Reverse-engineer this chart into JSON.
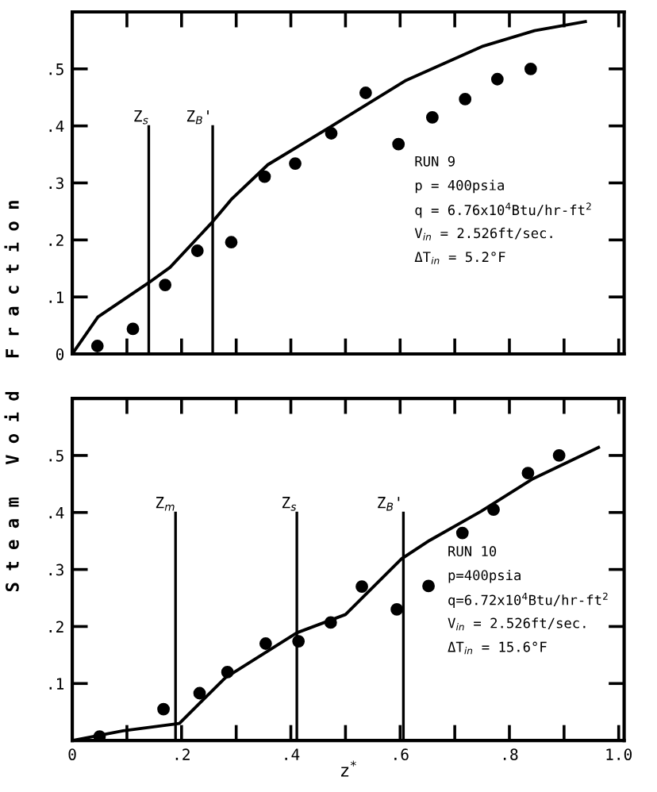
{
  "chart_data": [
    {
      "type": "scatter",
      "ylabel": "S t e a m   V o i d   F r a c t i o n",
      "xlim": [
        0,
        1.01
      ],
      "ylim": [
        0,
        0.6
      ],
      "tick_labels": "y",
      "grid": false,
      "legend": false,
      "xticks": [
        0.1,
        0.2,
        0.3,
        0.4,
        0.5,
        0.6,
        0.7,
        0.8,
        0.9,
        1.0
      ],
      "yticks": [
        {
          "value": 0,
          "label": "0"
        },
        {
          "value": 0.1,
          "label": ".1"
        },
        {
          "value": 0.2,
          "label": ".2"
        },
        {
          "value": 0.3,
          "label": ".3"
        },
        {
          "value": 0.4,
          "label": ".4"
        },
        {
          "value": 0.5,
          "label": ".5"
        }
      ],
      "series": [
        {
          "type": "line",
          "color": "#000000",
          "marker": "none",
          "line_style": "solid",
          "x": [
            0,
            0.047,
            0.14,
            0.179,
            0.256,
            0.292,
            0.358,
            0.47,
            0.611,
            0.752,
            0.846,
            0.939
          ],
          "values": [
            0,
            0.065,
            0.125,
            0.152,
            0.231,
            0.272,
            0.332,
            0.397,
            0.48,
            0.54,
            0.567,
            0.583
          ]
        },
        {
          "color": "#000000",
          "marker": "circle",
          "x": [
            0.046,
            0.111,
            0.17,
            0.229,
            0.291,
            0.352,
            0.408,
            0.474,
            0.537,
            0.597,
            0.659,
            0.719,
            0.778,
            0.839
          ],
          "values": [
            0.014,
            0.044,
            0.121,
            0.181,
            0.196,
            0.311,
            0.334,
            0.387,
            0.458,
            0.368,
            0.415,
            0.447,
            0.482,
            0.5
          ]
        }
      ],
      "ref_lines": [
        {
          "axis": "x",
          "value": 0.14,
          "label": "Z$_{s}$",
          "color": "#000000"
        },
        {
          "axis": "x",
          "value": 0.257,
          "label": "Z$_{B}$'",
          "color": "#000000"
        }
      ],
      "annotations": [
        "RUN 9",
        "p = 400psia",
        "q = 6.76x10$^{4}$Btu/hr-ft$^{2}$",
        "V$_{in}$ = 2.526ft/sec.",
        "ΔT$_{in}$ = 5.2°F"
      ]
    },
    {
      "type": "scatter",
      "xlabel": "z$^{*}$",
      "xlim": [
        0,
        1.01
      ],
      "ylim": [
        0,
        0.6
      ],
      "grid": false,
      "legend": false,
      "xticks": [
        {
          "value": 0,
          "label": "0"
        },
        {
          "value": 0.1,
          "label": null
        },
        {
          "value": 0.2,
          "label": ".2"
        },
        {
          "value": 0.3,
          "label": null
        },
        {
          "value": 0.4,
          "label": ".4"
        },
        {
          "value": 0.5,
          "label": null
        },
        {
          "value": 0.6,
          "label": ".6"
        },
        {
          "value": 0.7,
          "label": null
        },
        {
          "value": 0.8,
          "label": ".8"
        },
        {
          "value": 0.9,
          "label": null
        },
        {
          "value": 1.0,
          "label": "1.0"
        }
      ],
      "yticks": [
        {
          "value": 0,
          "label": null
        },
        {
          "value": 0.1,
          "label": ".1"
        },
        {
          "value": 0.2,
          "label": ".2"
        },
        {
          "value": 0.3,
          "label": ".3"
        },
        {
          "value": 0.4,
          "label": ".4"
        },
        {
          "value": 0.5,
          "label": ".5"
        }
      ],
      "series": [
        {
          "type": "line",
          "color": "#000000",
          "marker": "none",
          "line_style": "solid",
          "x": [
            0,
            0.093,
            0.196,
            0.28,
            0.411,
            0.5,
            0.603,
            0.654,
            0.748,
            0.841,
            0.963
          ],
          "values": [
            0,
            0.017,
            0.03,
            0.11,
            0.189,
            0.221,
            0.319,
            0.351,
            0.402,
            0.458,
            0.514
          ]
        },
        {
          "color": "#000000",
          "marker": "circle",
          "x": [
            0.05,
            0.167,
            0.233,
            0.284,
            0.354,
            0.414,
            0.473,
            0.53,
            0.594,
            0.652,
            0.714,
            0.771,
            0.834,
            0.891
          ],
          "values": [
            0.007,
            0.055,
            0.083,
            0.12,
            0.17,
            0.174,
            0.207,
            0.27,
            0.23,
            0.271,
            0.364,
            0.405,
            0.469,
            0.5
          ]
        }
      ],
      "ref_lines": [
        {
          "axis": "x",
          "value": 0.189,
          "label": "Z$_{m}$",
          "color": "#000000"
        },
        {
          "axis": "x",
          "value": 0.411,
          "label": "Z$_{s}$",
          "color": "#000000"
        },
        {
          "axis": "x",
          "value": 0.606,
          "label": "Z$_{B}$'",
          "color": "#000000"
        }
      ],
      "annotations": [
        "RUN 10",
        "p=400psia",
        "q=6.72x10$^{4}$Btu/hr-ft$^{2}$",
        "V$_{in}$ = 2.526ft/sec.",
        "ΔT$_{in}$ = 15.6°F"
      ]
    }
  ]
}
